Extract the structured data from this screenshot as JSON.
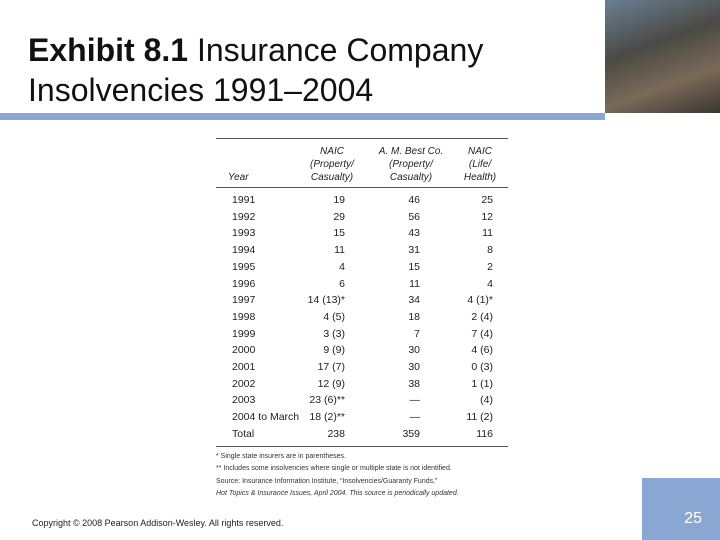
{
  "header": {
    "title_bold": "Exhibit 8.1",
    "title_rest": "Insurance Company Insolvencies 1991–2004"
  },
  "table": {
    "columns": [
      [
        "Year"
      ],
      [
        "NAIC",
        "(Property/",
        "Casualty)"
      ],
      [
        "A. M. Best Co.",
        "(Property/",
        "Casualty)"
      ],
      [
        "NAIC",
        "(Life/",
        "Health)"
      ]
    ],
    "rows": [
      [
        1991,
        19,
        46,
        25
      ],
      [
        1992,
        29,
        56,
        12
      ],
      [
        1993,
        15,
        43,
        11
      ],
      [
        1994,
        11,
        31,
        8
      ],
      [
        1995,
        4,
        15,
        2
      ],
      [
        1996,
        6,
        11,
        4
      ],
      [
        1997,
        "14 (13)*",
        34,
        "4 (1)*"
      ],
      [
        1998,
        "4 (5)",
        18,
        "2 (4)"
      ],
      [
        1999,
        "3 (3)",
        7,
        "7 (4)"
      ],
      [
        2000,
        "9 (9)",
        30,
        "4 (6)"
      ],
      [
        2001,
        "17 (7)",
        30,
        "0 (3)"
      ],
      [
        2002,
        "12 (9)",
        38,
        "1 (1)"
      ],
      [
        2003,
        "23 (6)**",
        "—",
        "(4)"
      ],
      [
        "2004 to March",
        "18 (2)**",
        "—",
        "11 (2)"
      ],
      [
        "Total",
        238,
        359,
        116
      ]
    ],
    "notes": [
      "* Single state insurers are in parentheses.",
      "** Includes some insolvencies where single or multiple state is not identified.",
      "Source: Insurance Information Institute, “Insolvencies/Guaranty Funds,”",
      "Hot Topics & Insurance Issues, April 2004. This source is periodically updated."
    ]
  },
  "footer": {
    "copyright": "Copyright © 2008 Pearson Addison-Wesley. All rights reserved.",
    "page_number": 25
  }
}
